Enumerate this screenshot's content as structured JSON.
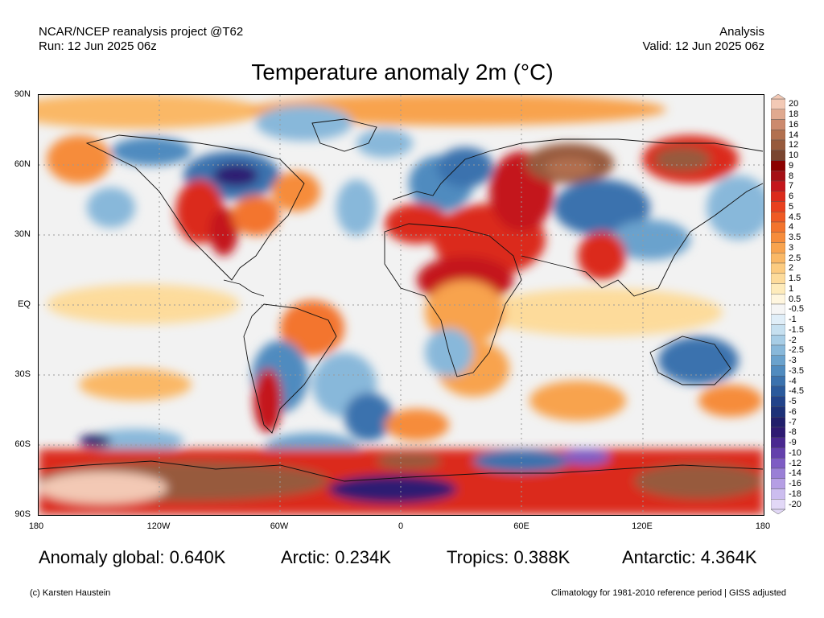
{
  "header": {
    "source": "NCAR/NCEP reanalysis project @T62",
    "run": "Run: 12 Jun 2025 06z",
    "type": "Analysis",
    "valid": "Valid: 12 Jun 2025 06z"
  },
  "title": "Temperature anomaly 2m (°C)",
  "map": {
    "lat_labels": [
      "90N",
      "60N",
      "30N",
      "EQ",
      "30S",
      "60S",
      "90S"
    ],
    "lon_labels": [
      "180",
      "120W",
      "60W",
      "0",
      "60E",
      "120E",
      "180"
    ]
  },
  "colorbar": {
    "labels": [
      "20",
      "18",
      "16",
      "14",
      "12",
      "10",
      "9",
      "8",
      "7",
      "6",
      "5",
      "4.5",
      "4",
      "3.5",
      "3",
      "2.5",
      "2",
      "1.5",
      "1",
      "0.5",
      "-0.5",
      "-1",
      "-1.5",
      "-2",
      "-2.5",
      "-3",
      "-3.5",
      "-4",
      "-4.5",
      "-5",
      "-6",
      "-7",
      "-8",
      "-9",
      "-10",
      "-12",
      "-14",
      "-16",
      "-18",
      "-20"
    ],
    "colors": [
      "#f3c9b5",
      "#e0a98f",
      "#cc8a6e",
      "#b2704f",
      "#975a3c",
      "#7a4530",
      "#8b0000",
      "#a50f15",
      "#c4161c",
      "#db2b1c",
      "#e8401e",
      "#ef5a24",
      "#f3742d",
      "#f68c3b",
      "#f8a34e",
      "#fab866",
      "#fccb80",
      "#fddb9b",
      "#feebbb",
      "#fff6df",
      "#f5f5f5",
      "#e0eef8",
      "#c6e0f0",
      "#a7cde6",
      "#88b8da",
      "#6aa2cd",
      "#508bbf",
      "#3b72ae",
      "#2b5a9c",
      "#22438a",
      "#1d3178",
      "#211f6b",
      "#2e1a72",
      "#4a2890",
      "#6440ac",
      "#7e5cc4",
      "#9a7fd6",
      "#b59ee4",
      "#ccbdef",
      "#e2d8f7"
    ]
  },
  "stats": {
    "global": "Anomaly global: 0.640K",
    "arctic": "Arctic: 0.234K",
    "tropics": "Tropics: 0.388K",
    "antarctic": "Antarctic: 4.364K"
  },
  "footer": {
    "copyright": "(c) Karsten Haustein",
    "note": "Climatology for 1981-2010 reference period | GISS adjusted"
  }
}
